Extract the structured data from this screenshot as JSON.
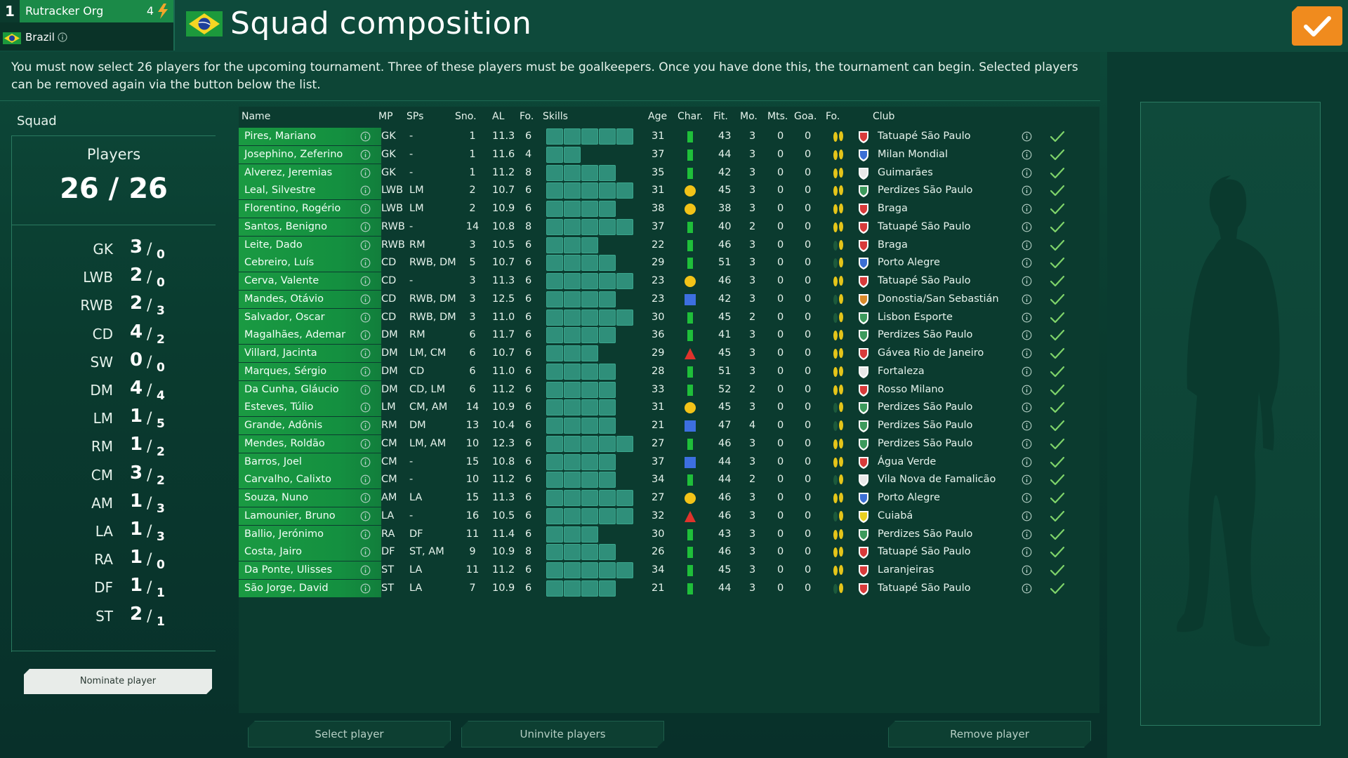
{
  "topbar": {
    "rank": "1",
    "user_name": "Rutracker Org",
    "energy": "4",
    "nation": "Brazil",
    "page_title": "Squad composition"
  },
  "colors": {
    "accent_orange": "#f08b1e",
    "row_green": "#1a9a42",
    "check_green": "#7fd46a",
    "bg_dark": "#0a3b2f"
  },
  "info_text": "You must now select 26 players for the upcoming tournament. Three of these players must be goalkeepers. Once you have done this, the tournament can begin. Selected players can be removed again via the button below the list.",
  "squad": {
    "heading": "Squad",
    "players_title": "Players",
    "players_count": "26 / 26",
    "positions": [
      {
        "label": "GK",
        "selected": "3",
        "required": "0"
      },
      {
        "label": "LWB",
        "selected": "2",
        "required": "0"
      },
      {
        "label": "RWB",
        "selected": "2",
        "required": "3"
      },
      {
        "label": "CD",
        "selected": "4",
        "required": "2"
      },
      {
        "label": "SW",
        "selected": "0",
        "required": "0"
      },
      {
        "label": "DM",
        "selected": "4",
        "required": "4"
      },
      {
        "label": "LM",
        "selected": "1",
        "required": "5"
      },
      {
        "label": "RM",
        "selected": "1",
        "required": "2"
      },
      {
        "label": "CM",
        "selected": "3",
        "required": "2"
      },
      {
        "label": "AM",
        "selected": "1",
        "required": "3"
      },
      {
        "label": "LA",
        "selected": "1",
        "required": "3"
      },
      {
        "label": "RA",
        "selected": "1",
        "required": "0"
      },
      {
        "label": "DF",
        "selected": "1",
        "required": "1"
      },
      {
        "label": "ST",
        "selected": "2",
        "required": "1"
      }
    ],
    "nominate_label": "Nominate player"
  },
  "table": {
    "headers": {
      "name": "Name",
      "mp": "MP",
      "sps": "SPs",
      "sno": "Sno.",
      "al": "AL",
      "fo": "Fo.",
      "skills": "Skills",
      "age": "Age",
      "char": "Char.",
      "fit": "Fit.",
      "mo": "Mo.",
      "mts": "Mts.",
      "goa": "Goa.",
      "fo2": "Fo.",
      "club": "Club"
    },
    "rows": [
      {
        "name": "Pires, Mariano",
        "mp": "GK",
        "sps": "-",
        "sno": "1",
        "al": "11.3",
        "fo": "6",
        "skills": 5,
        "age": "31",
        "char": "bar",
        "fit": "43",
        "mo": "3",
        "mts": "0",
        "goa": "0",
        "foot": "both",
        "club": "Tatuapé São Paulo",
        "crest": "red"
      },
      {
        "name": "Josephino, Zeferino",
        "mp": "GK",
        "sps": "-",
        "sno": "1",
        "al": "11.6",
        "fo": "4",
        "skills": 2,
        "age": "37",
        "char": "bar",
        "fit": "44",
        "mo": "3",
        "mts": "0",
        "goa": "0",
        "foot": "both",
        "club": "Milan Mondial",
        "crest": "blue"
      },
      {
        "name": "Alverez, Jeremias",
        "mp": "GK",
        "sps": "-",
        "sno": "1",
        "al": "11.2",
        "fo": "8",
        "skills": 4,
        "age": "35",
        "char": "bar",
        "fit": "42",
        "mo": "3",
        "mts": "0",
        "goa": "0",
        "foot": "both",
        "club": "Guimarães",
        "crest": "white"
      },
      {
        "name": "Leal, Silvestre",
        "mp": "LWB",
        "sps": "LM",
        "sno": "2",
        "al": "10.7",
        "fo": "6",
        "skills": 5,
        "age": "31",
        "char": "circle",
        "fit": "45",
        "mo": "3",
        "mts": "0",
        "goa": "0",
        "foot": "both",
        "club": "Perdizes São Paulo",
        "crest": "green"
      },
      {
        "name": "Florentino, Rogério",
        "mp": "LWB",
        "sps": "LM",
        "sno": "2",
        "al": "10.9",
        "fo": "6",
        "skills": 4,
        "age": "38",
        "char": "circle",
        "fit": "38",
        "mo": "3",
        "mts": "0",
        "goa": "0",
        "foot": "both",
        "club": "Braga",
        "crest": "red"
      },
      {
        "name": "Santos, Benigno",
        "mp": "RWB",
        "sps": "-",
        "sno": "14",
        "al": "10.8",
        "fo": "8",
        "skills": 5,
        "age": "37",
        "char": "bar",
        "fit": "40",
        "mo": "2",
        "mts": "0",
        "goa": "0",
        "foot": "both",
        "club": "Tatuapé São Paulo",
        "crest": "red"
      },
      {
        "name": "Leite, Dado",
        "mp": "RWB",
        "sps": "RM",
        "sno": "3",
        "al": "10.5",
        "fo": "6",
        "skills": 3,
        "age": "22",
        "char": "bar",
        "fit": "46",
        "mo": "3",
        "mts": "0",
        "goa": "0",
        "foot": "right",
        "club": "Braga",
        "crest": "red"
      },
      {
        "name": "Cebreiro, Luís",
        "mp": "CD",
        "sps": "RWB, DM",
        "sno": "5",
        "al": "10.7",
        "fo": "6",
        "skills": 4,
        "age": "29",
        "char": "bar",
        "fit": "51",
        "mo": "3",
        "mts": "0",
        "goa": "0",
        "foot": "right",
        "club": "Porto Alegre",
        "crest": "blue"
      },
      {
        "name": "Cerva, Valente",
        "mp": "CD",
        "sps": "-",
        "sno": "3",
        "al": "11.3",
        "fo": "6",
        "skills": 5,
        "age": "23",
        "char": "circle",
        "fit": "46",
        "mo": "3",
        "mts": "0",
        "goa": "0",
        "foot": "both",
        "club": "Tatuapé São Paulo",
        "crest": "red"
      },
      {
        "name": "Mandes, Otávio",
        "mp": "CD",
        "sps": "RWB, DM",
        "sno": "3",
        "al": "12.5",
        "fo": "6",
        "skills": 4,
        "age": "23",
        "char": "square",
        "fit": "42",
        "mo": "3",
        "mts": "0",
        "goa": "0",
        "foot": "right",
        "club": "Donostia/San Sebastián",
        "crest": "orange"
      },
      {
        "name": "Salvador, Oscar",
        "mp": "CD",
        "sps": "RWB, DM",
        "sno": "3",
        "al": "11.0",
        "fo": "6",
        "skills": 5,
        "age": "30",
        "char": "bar",
        "fit": "45",
        "mo": "2",
        "mts": "0",
        "goa": "0",
        "foot": "right",
        "club": "Lisbon Esporte",
        "crest": "green"
      },
      {
        "name": "Magalhães, Ademar",
        "mp": "DM",
        "sps": "RM",
        "sno": "6",
        "al": "11.7",
        "fo": "6",
        "skills": 4,
        "age": "36",
        "char": "bar",
        "fit": "41",
        "mo": "3",
        "mts": "0",
        "goa": "0",
        "foot": "both",
        "club": "Perdizes São Paulo",
        "crest": "green"
      },
      {
        "name": "Villard, Jacinta",
        "mp": "DM",
        "sps": "LM, CM",
        "sno": "6",
        "al": "10.7",
        "fo": "6",
        "skills": 3,
        "age": "29",
        "char": "triangle",
        "fit": "45",
        "mo": "3",
        "mts": "0",
        "goa": "0",
        "foot": "both",
        "club": "Gávea Rio de Janeiro",
        "crest": "red"
      },
      {
        "name": "Marques, Sérgio",
        "mp": "DM",
        "sps": "CD",
        "sno": "6",
        "al": "11.0",
        "fo": "6",
        "skills": 4,
        "age": "28",
        "char": "bar",
        "fit": "51",
        "mo": "3",
        "mts": "0",
        "goa": "0",
        "foot": "both",
        "club": "Fortaleza",
        "crest": "white"
      },
      {
        "name": "Da Cunha, Gláucio",
        "mp": "DM",
        "sps": "CD, LM",
        "sno": "6",
        "al": "11.2",
        "fo": "6",
        "skills": 4,
        "age": "33",
        "char": "bar",
        "fit": "52",
        "mo": "2",
        "mts": "0",
        "goa": "0",
        "foot": "both",
        "club": "Rosso Milano",
        "crest": "red"
      },
      {
        "name": "Esteves, Túlio",
        "mp": "LM",
        "sps": "CM, AM",
        "sno": "14",
        "al": "10.9",
        "fo": "6",
        "skills": 4,
        "age": "31",
        "char": "circle",
        "fit": "45",
        "mo": "3",
        "mts": "0",
        "goa": "0",
        "foot": "right",
        "club": "Perdizes São Paulo",
        "crest": "green"
      },
      {
        "name": "Grande, Adônis",
        "mp": "RM",
        "sps": "DM",
        "sno": "13",
        "al": "10.4",
        "fo": "6",
        "skills": 4,
        "age": "21",
        "char": "square",
        "fit": "47",
        "mo": "4",
        "mts": "0",
        "goa": "0",
        "foot": "right",
        "club": "Perdizes São Paulo",
        "crest": "green"
      },
      {
        "name": "Mendes, Roldão",
        "mp": "CM",
        "sps": "LM, AM",
        "sno": "10",
        "al": "12.3",
        "fo": "6",
        "skills": 5,
        "age": "27",
        "char": "bar",
        "fit": "46",
        "mo": "3",
        "mts": "0",
        "goa": "0",
        "foot": "both",
        "club": "Perdizes São Paulo",
        "crest": "green"
      },
      {
        "name": "Barros, Joel",
        "mp": "CM",
        "sps": "-",
        "sno": "15",
        "al": "10.8",
        "fo": "6",
        "skills": 4,
        "age": "37",
        "char": "square",
        "fit": "44",
        "mo": "3",
        "mts": "0",
        "goa": "0",
        "foot": "both",
        "club": "Água Verde",
        "crest": "red"
      },
      {
        "name": "Carvalho, Calixto",
        "mp": "CM",
        "sps": "-",
        "sno": "10",
        "al": "11.2",
        "fo": "6",
        "skills": 4,
        "age": "34",
        "char": "bar",
        "fit": "44",
        "mo": "2",
        "mts": "0",
        "goa": "0",
        "foot": "right",
        "club": "Vila Nova de Famalicão",
        "crest": "white"
      },
      {
        "name": "Souza, Nuno",
        "mp": "AM",
        "sps": "LA",
        "sno": "15",
        "al": "11.3",
        "fo": "6",
        "skills": 5,
        "age": "27",
        "char": "circle",
        "fit": "46",
        "mo": "3",
        "mts": "0",
        "goa": "0",
        "foot": "both",
        "club": "Porto Alegre",
        "crest": "blue"
      },
      {
        "name": "Lamounier, Bruno",
        "mp": "LA",
        "sps": "-",
        "sno": "16",
        "al": "10.5",
        "fo": "6",
        "skills": 5,
        "age": "32",
        "char": "triangle",
        "fit": "46",
        "mo": "3",
        "mts": "0",
        "goa": "0",
        "foot": "right",
        "club": "Cuiabá",
        "crest": "yellow"
      },
      {
        "name": "Ballio, Jerónimo",
        "mp": "RA",
        "sps": "DF",
        "sno": "11",
        "al": "11.4",
        "fo": "6",
        "skills": 3,
        "age": "30",
        "char": "bar",
        "fit": "43",
        "mo": "3",
        "mts": "0",
        "goa": "0",
        "foot": "both",
        "club": "Perdizes São Paulo",
        "crest": "green"
      },
      {
        "name": "Costa, Jairo",
        "mp": "DF",
        "sps": "ST, AM",
        "sno": "9",
        "al": "10.9",
        "fo": "8",
        "skills": 4,
        "age": "26",
        "char": "bar",
        "fit": "46",
        "mo": "3",
        "mts": "0",
        "goa": "0",
        "foot": "both",
        "club": "Tatuapé São Paulo",
        "crest": "red"
      },
      {
        "name": "Da Ponte, Ulisses",
        "mp": "ST",
        "sps": "LA",
        "sno": "11",
        "al": "11.2",
        "fo": "6",
        "skills": 5,
        "age": "34",
        "char": "bar",
        "fit": "45",
        "mo": "3",
        "mts": "0",
        "goa": "0",
        "foot": "both",
        "club": "Laranjeiras",
        "crest": "red"
      },
      {
        "name": "São Jorge, David",
        "mp": "ST",
        "sps": "LA",
        "sno": "7",
        "al": "10.9",
        "fo": "6",
        "skills": 4,
        "age": "21",
        "char": "bar",
        "fit": "44",
        "mo": "3",
        "mts": "0",
        "goa": "0",
        "foot": "right",
        "club": "Tatuapé São Paulo",
        "crest": "red"
      }
    ]
  },
  "buttons": {
    "select": "Select player",
    "uninvite": "Uninvite players",
    "remove": "Remove player"
  }
}
